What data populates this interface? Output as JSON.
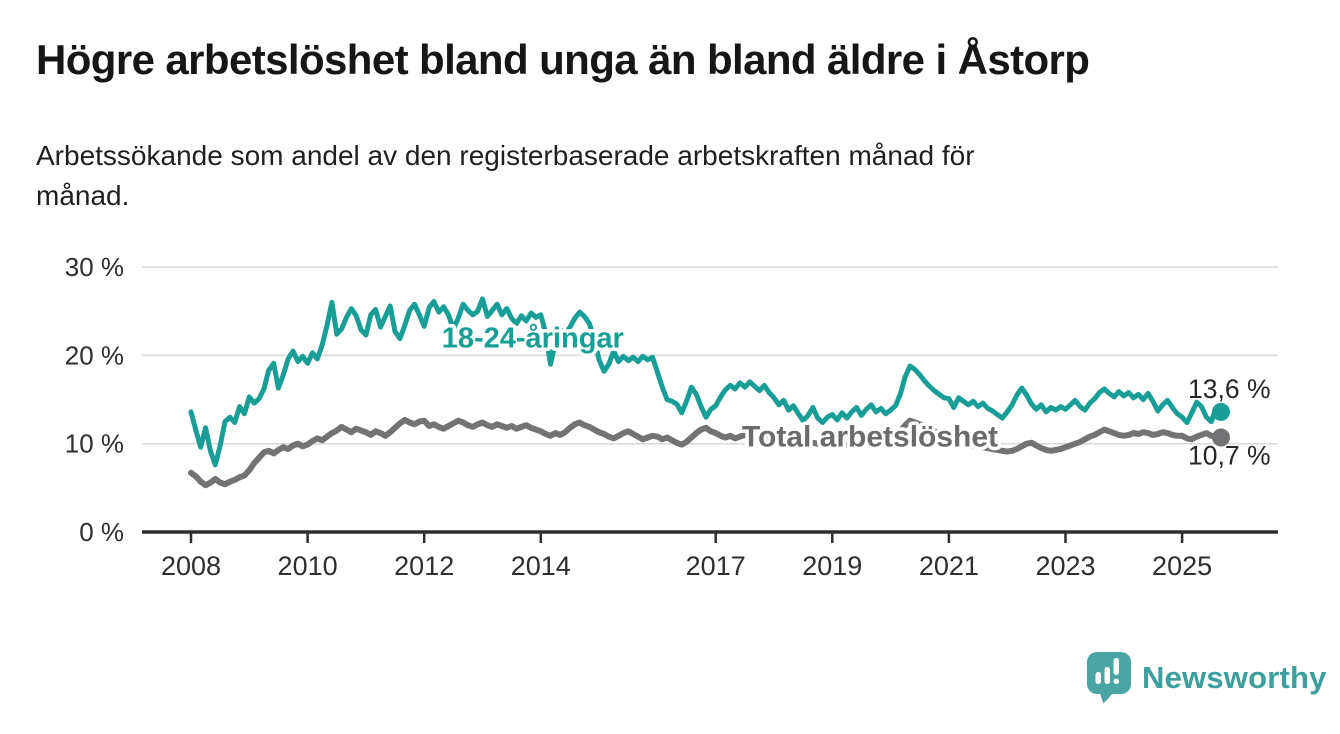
{
  "chart_data": {
    "type": "line",
    "title": "Högre arbetslöshet bland unga än bland äldre i Åstorp",
    "subtitle_lines": [
      "Arbetssökande som andel av den registerbaserade arbetskraften månad för",
      "månad."
    ],
    "unit": "%",
    "frequency": "monthly",
    "x_start": {
      "year": 2008,
      "month": 1
    },
    "x_end": {
      "year": 2025,
      "month": 9
    },
    "ylim": [
      0,
      30
    ],
    "grid": true,
    "axis_color": "#2e2e2e",
    "grid_color": "#d8d8d8",
    "tick_label_color": "#2e2e2e",
    "value_label_color": "#262626",
    "yticks": [
      {
        "value": 0,
        "label": "0 %"
      },
      {
        "value": 10,
        "label": "10 %"
      },
      {
        "value": 20,
        "label": "20 %"
      },
      {
        "value": 30,
        "label": "30 %"
      }
    ],
    "xticks": [
      {
        "year": 2008,
        "label": "2008"
      },
      {
        "year": 2010,
        "label": "2010"
      },
      {
        "year": 2012,
        "label": "2012"
      },
      {
        "year": 2014,
        "label": "2014"
      },
      {
        "year": 2017,
        "label": "2017"
      },
      {
        "year": 2019,
        "label": "2019"
      },
      {
        "year": 2021,
        "label": "2021"
      },
      {
        "year": 2023,
        "label": "2023"
      },
      {
        "year": 2025,
        "label": "2025"
      }
    ],
    "series": [
      {
        "name": "18-24-åringar",
        "color": "#189e97",
        "line_width": 5,
        "last_value": 13.6,
        "end_label": "13,6 %",
        "values": [
          13.6,
          11.5,
          9.6,
          11.8,
          9.2,
          7.6,
          9.8,
          12.5,
          13.0,
          12.4,
          14.2,
          13.4,
          15.3,
          14.6,
          15.1,
          16.2,
          18.3,
          19.1,
          16.3,
          17.8,
          19.6,
          20.5,
          19.3,
          19.9,
          19.1,
          20.3,
          19.6,
          21.2,
          23.4,
          26.0,
          22.4,
          23.0,
          24.3,
          25.3,
          24.5,
          22.9,
          22.3,
          24.6,
          25.2,
          23.2,
          24.4,
          25.6,
          22.7,
          21.9,
          23.4,
          25.1,
          25.8,
          24.6,
          23.3,
          25.4,
          26.1,
          24.9,
          25.5,
          24.6,
          23.0,
          24.2,
          25.8,
          25.1,
          24.6,
          25.0,
          26.4,
          24.4,
          25.1,
          25.8,
          24.6,
          25.3,
          24.2,
          23.6,
          24.5,
          23.9,
          24.8,
          24.3,
          24.6,
          22.5,
          19.0,
          21.5,
          23.0,
          22.4,
          23.2,
          24.2,
          24.9,
          24.4,
          23.6,
          21.9,
          19.5,
          18.2,
          19.0,
          20.5,
          19.3,
          19.9,
          19.4,
          19.8,
          19.3,
          19.9,
          19.5,
          19.8,
          18.1,
          16.4,
          15.0,
          14.8,
          14.5,
          13.5,
          14.8,
          16.4,
          15.6,
          14.2,
          13.0,
          13.9,
          14.3,
          15.3,
          16.1,
          16.6,
          16.2,
          16.9,
          16.4,
          17.0,
          16.5,
          16.0,
          16.6,
          15.8,
          15.2,
          14.4,
          14.9,
          13.8,
          14.3,
          13.4,
          12.6,
          13.2,
          14.1,
          12.9,
          12.4,
          13.0,
          13.3,
          12.7,
          13.5,
          12.9,
          13.6,
          14.1,
          13.2,
          13.9,
          14.4,
          13.6,
          14.0,
          13.4,
          13.8,
          14.3,
          15.6,
          17.6,
          18.8,
          18.4,
          17.8,
          17.1,
          16.5,
          16.0,
          15.6,
          15.2,
          15.1,
          14.1,
          15.2,
          14.8,
          14.4,
          14.8,
          14.2,
          14.6,
          14.0,
          13.7,
          13.3,
          12.9,
          13.6,
          14.4,
          15.5,
          16.3,
          15.5,
          14.5,
          13.9,
          14.4,
          13.6,
          14.1,
          13.8,
          14.2,
          13.9,
          14.4,
          14.9,
          14.2,
          13.8,
          14.6,
          15.1,
          15.8,
          16.2,
          15.7,
          15.3,
          15.9,
          15.4,
          15.8,
          15.2,
          15.6,
          15.0,
          15.7,
          14.8,
          13.7,
          14.4,
          14.9,
          14.1,
          13.4,
          13.0,
          12.4,
          13.5,
          14.7,
          14.2,
          13.0,
          12.5,
          14.0,
          13.6
        ]
      },
      {
        "name": "Total arbetslöshet",
        "color": "#737376",
        "line_width": 6,
        "last_value": 10.7,
        "end_label": "10,7 %",
        "values": [
          6.7,
          6.3,
          5.7,
          5.3,
          5.6,
          6.0,
          5.6,
          5.4,
          5.7,
          5.9,
          6.2,
          6.4,
          7.0,
          7.8,
          8.4,
          9.0,
          9.2,
          8.9,
          9.3,
          9.6,
          9.4,
          9.8,
          10.0,
          9.7,
          9.9,
          10.3,
          10.6,
          10.4,
          10.8,
          11.2,
          11.5,
          11.9,
          11.6,
          11.3,
          11.7,
          11.5,
          11.3,
          11.0,
          11.4,
          11.2,
          10.9,
          11.3,
          11.8,
          12.3,
          12.7,
          12.4,
          12.2,
          12.5,
          12.6,
          12.0,
          12.2,
          11.9,
          11.7,
          12.0,
          12.3,
          12.6,
          12.4,
          12.1,
          11.9,
          12.2,
          12.4,
          12.1,
          11.9,
          12.2,
          12.0,
          11.8,
          12.0,
          11.7,
          11.9,
          12.1,
          11.8,
          11.6,
          11.4,
          11.1,
          10.9,
          11.2,
          11.0,
          11.3,
          11.8,
          12.2,
          12.4,
          12.1,
          11.9,
          11.6,
          11.3,
          11.1,
          10.8,
          10.6,
          10.9,
          11.2,
          11.4,
          11.1,
          10.8,
          10.5,
          10.7,
          10.9,
          10.8,
          10.5,
          10.7,
          10.4,
          10.1,
          9.9,
          10.2,
          10.7,
          11.2,
          11.6,
          11.8,
          11.4,
          11.2,
          10.9,
          10.7,
          10.9,
          10.6,
          10.8,
          11.0,
          10.9,
          10.7,
          10.8,
          10.6,
          10.5,
          10.4,
          10.2,
          10.3,
          10.1,
          10.0,
          10.2,
          10.0,
          9.9,
          10.1,
          10.0,
          9.8,
          9.9,
          9.8,
          9.9,
          10.0,
          9.9,
          10.1,
          10.2,
          10.0,
          10.1,
          10.3,
          10.2,
          10.4,
          10.5,
          10.7,
          10.9,
          11.4,
          12.1,
          12.6,
          12.4,
          12.2,
          12.0,
          11.7,
          11.4,
          11.2,
          11.0,
          10.8,
          10.6,
          10.4,
          10.2,
          10.0,
          9.8,
          9.7,
          9.6,
          9.5,
          9.4,
          9.3,
          9.2,
          9.1,
          9.2,
          9.4,
          9.7,
          10.0,
          10.1,
          9.8,
          9.5,
          9.3,
          9.2,
          9.3,
          9.4,
          9.6,
          9.8,
          10.0,
          10.2,
          10.5,
          10.8,
          11.0,
          11.3,
          11.6,
          11.4,
          11.2,
          11.0,
          10.9,
          11.0,
          11.2,
          11.1,
          11.3,
          11.2,
          11.0,
          11.1,
          11.3,
          11.2,
          11.0,
          10.9,
          10.9,
          10.6,
          10.5,
          10.8,
          11.0,
          11.2,
          10.9,
          10.8,
          10.7
        ]
      }
    ],
    "series_labels": [
      {
        "text": "18-24-åringar",
        "color": "#189e97",
        "year": 2012.3,
        "value": 20.9,
        "font_size": 29
      },
      {
        "text": "Total arbetslöshet",
        "color": "#6b6b6e",
        "year": 2017.45,
        "value": 9.7,
        "font_size": 30
      }
    ],
    "legend_position": "inline-labels"
  },
  "footer": {
    "brand": "Newsworthy",
    "brand_color": "#3c9f9d",
    "icon_color": "#4aa5a2"
  }
}
